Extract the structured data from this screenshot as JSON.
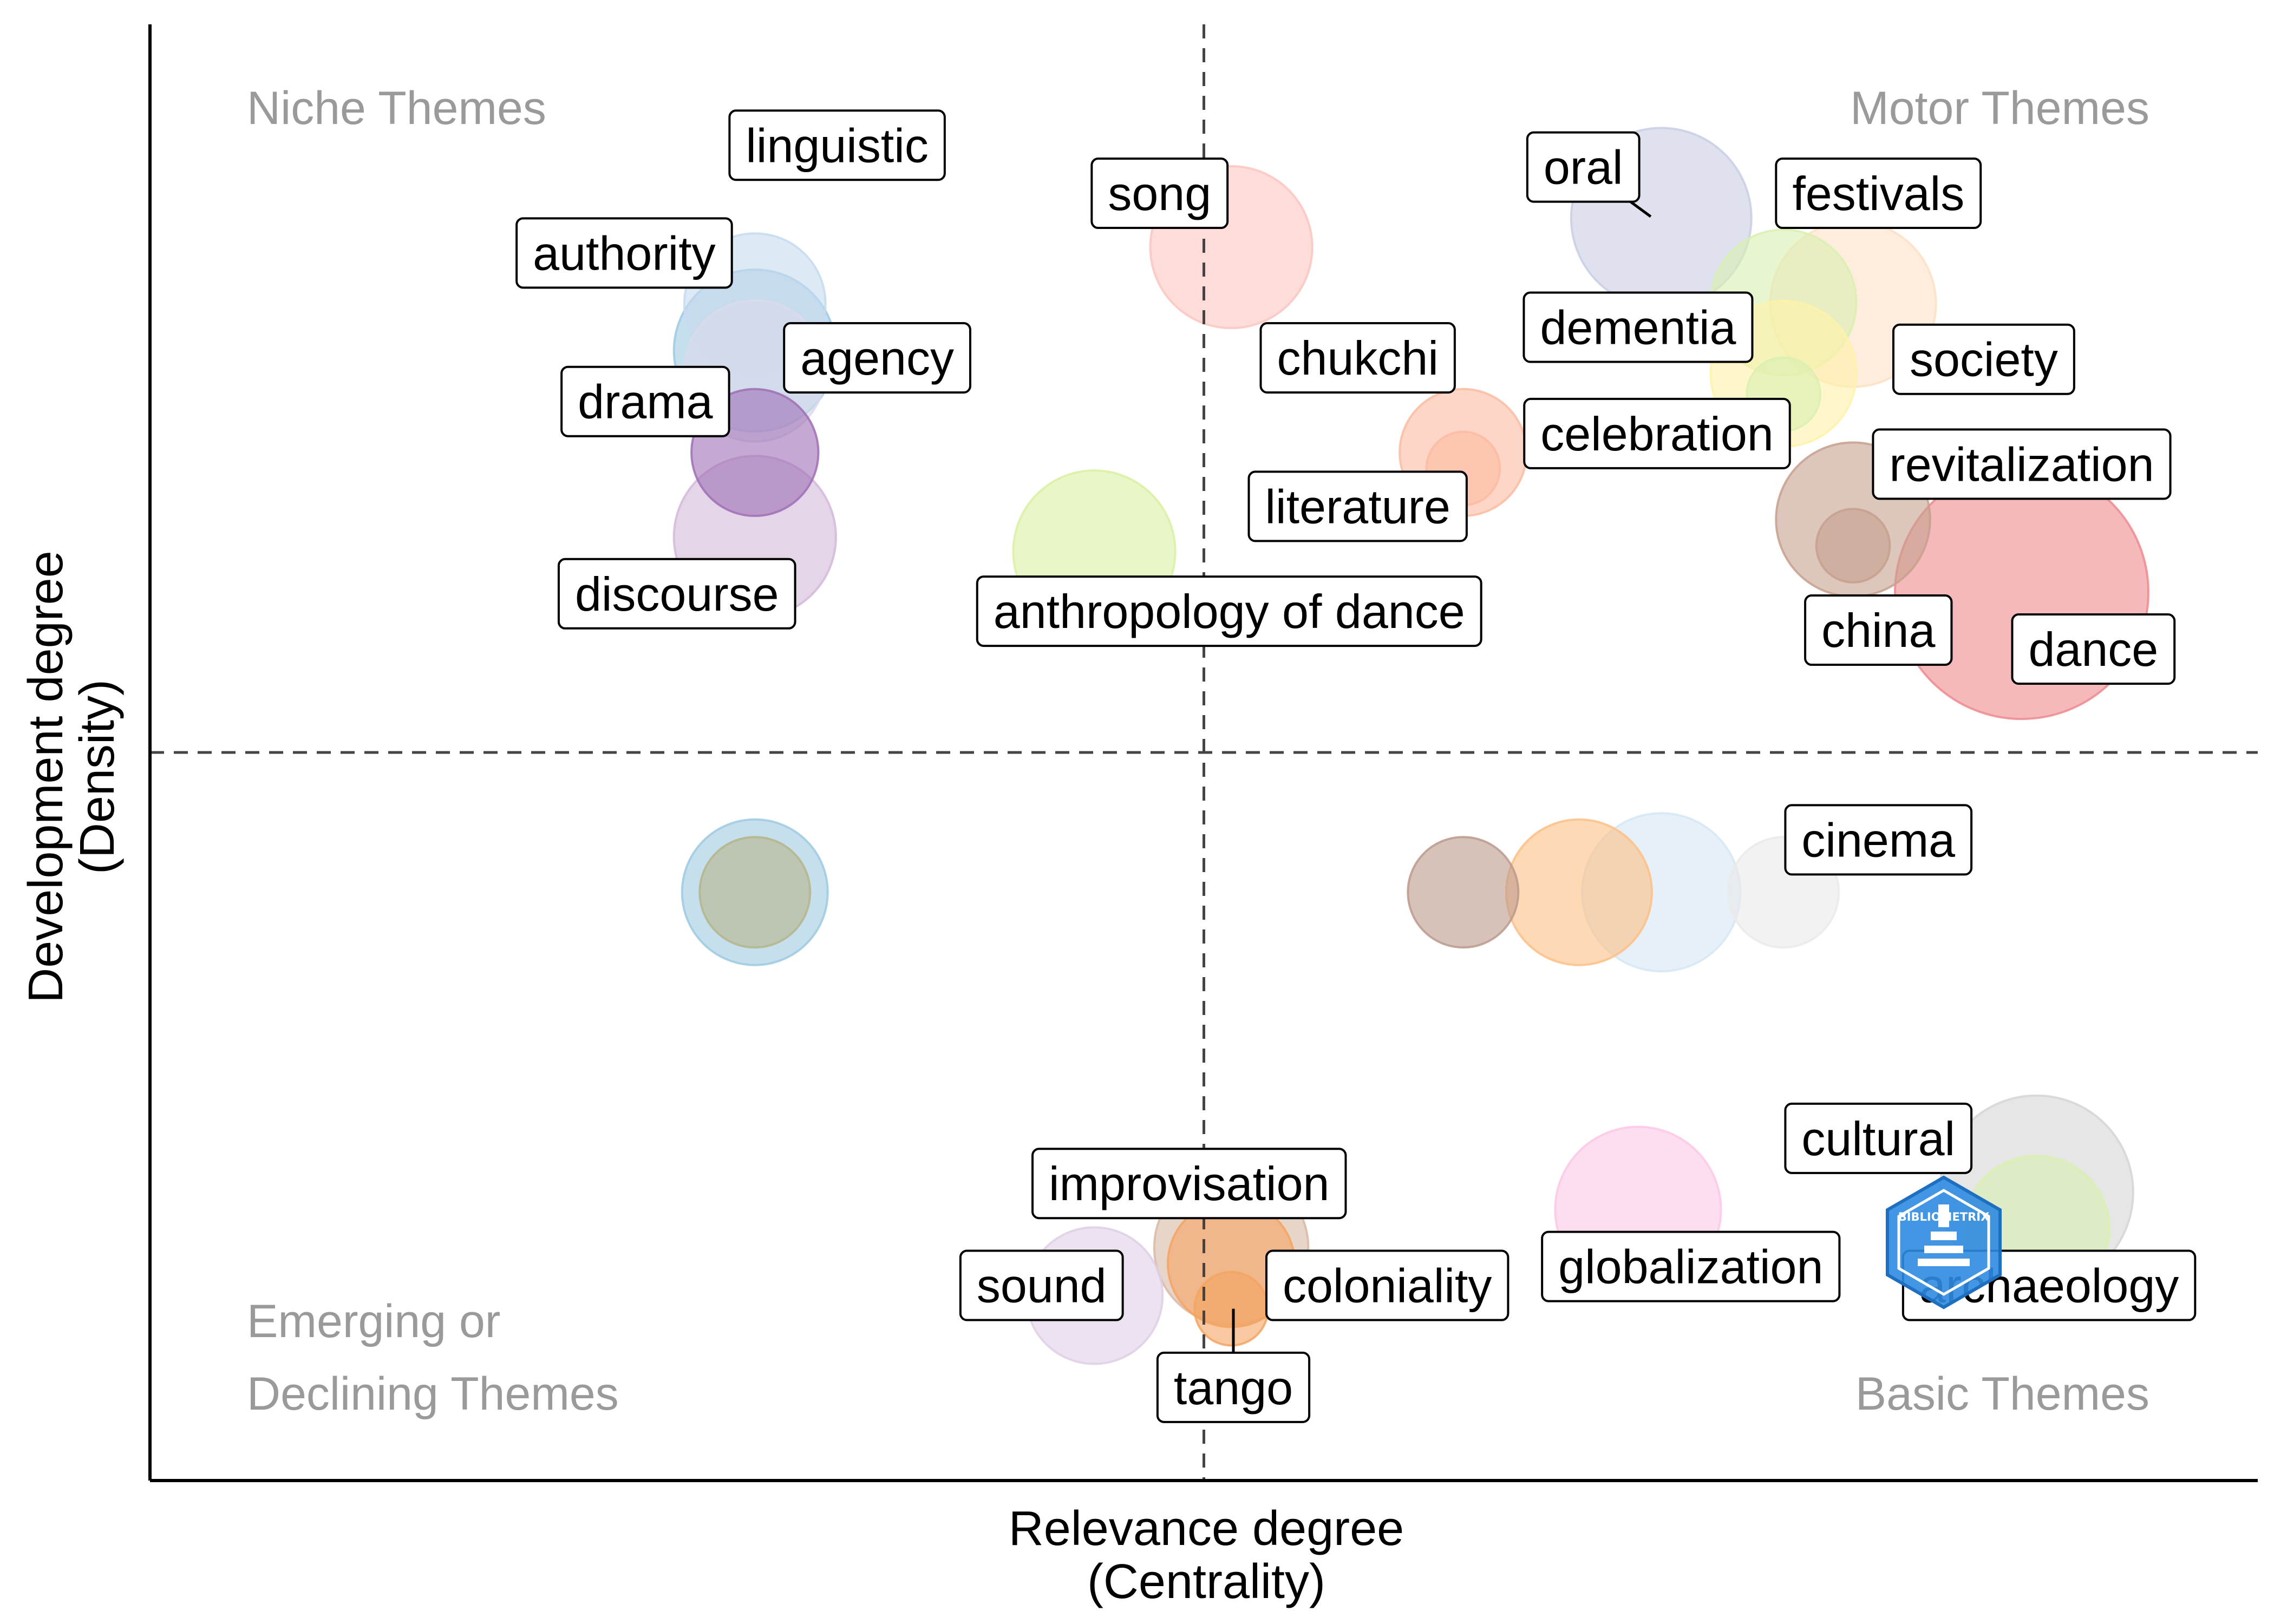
{
  "chart_data": {
    "type": "scatter",
    "title": "",
    "xlabel": "Relevance degree",
    "xlabel_sub": "(Centrality)",
    "ylabel": "Development degree",
    "ylabel_sub": "(Density)",
    "xlim": [
      0,
      10
    ],
    "ylim": [
      0,
      10
    ],
    "x_split": 5,
    "y_split": 5,
    "quadrants": {
      "niche": "Niche Themes",
      "motor": "Motor Themes",
      "emerging_line1": "Emerging or",
      "emerging_line2": "Declining Themes",
      "basic": "Basic Themes"
    },
    "points": [
      {
        "x": 2.87,
        "y": 8.08,
        "size": 28,
        "color": "#c6dbef",
        "label": "linguistic"
      },
      {
        "x": 2.87,
        "y": 7.76,
        "size": 38,
        "color": "#9ecae1",
        "label": "authority"
      },
      {
        "x": 2.87,
        "y": 7.62,
        "size": 28,
        "color": "#dadaeb",
        "label": "agency"
      },
      {
        "x": 2.87,
        "y": 7.06,
        "size": 22,
        "color": "#9e70b5",
        "label": "drama"
      },
      {
        "x": 2.87,
        "y": 6.48,
        "size": 38,
        "color": "#d4b9da",
        "label": "discourse"
      },
      {
        "x": 5.13,
        "y": 8.47,
        "size": 38,
        "color": "#fcc5c0",
        "label": "song"
      },
      {
        "x": 6.23,
        "y": 7.06,
        "size": 22,
        "color": "#fcbba1",
        "label": "chukchi"
      },
      {
        "x": 4.48,
        "y": 6.38,
        "size": 38,
        "color": "#d9f0a3",
        "label": "anthropology of dance"
      },
      {
        "x": 6.23,
        "y": 6.95,
        "size": 6,
        "color": "#fcbba1",
        "label": "literature"
      },
      {
        "x": 7.17,
        "y": 8.67,
        "size": 48,
        "color": "#c9cee3",
        "label": "oral"
      },
      {
        "x": 7.75,
        "y": 8.09,
        "size": 30,
        "color": "#d9f0b0",
        "label": "dementia"
      },
      {
        "x": 8.08,
        "y": 8.08,
        "size": 40,
        "color": "#fde0c5",
        "label": "festivals"
      },
      {
        "x": 7.75,
        "y": 7.6,
        "size": 30,
        "color": "#fff2a8",
        "label": "society"
      },
      {
        "x": 7.75,
        "y": 7.46,
        "size": 6,
        "color": "#d9f0b0",
        "label": "celebration"
      },
      {
        "x": 8.08,
        "y": 6.6,
        "size": 34,
        "color": "#c7a08d",
        "label": "revitalization"
      },
      {
        "x": 8.08,
        "y": 6.42,
        "size": 6,
        "color": "#c7a08d",
        "label": "china"
      },
      {
        "x": 8.88,
        "y": 6.1,
        "size": 100,
        "color": "#ef8a8e",
        "label": "dance"
      },
      {
        "x": 6.23,
        "y": 4.04,
        "size": 16,
        "color": "#bc9a8c",
        "label": ""
      },
      {
        "x": 6.78,
        "y": 4.04,
        "size": 30,
        "color": "#fdbf86",
        "label": ""
      },
      {
        "x": 7.17,
        "y": 4.04,
        "size": 36,
        "color": "#d6e6f4",
        "label": ""
      },
      {
        "x": 7.75,
        "y": 4.04,
        "size": 16,
        "color": "#eaeaea",
        "label": "cinema"
      },
      {
        "x": 2.87,
        "y": 4.04,
        "size": 30,
        "color": "#9ecae1",
        "label": ""
      },
      {
        "x": 2.87,
        "y": 4.04,
        "size": 16,
        "color": "#b5b58a",
        "label": ""
      },
      {
        "x": 8.95,
        "y": 1.98,
        "size": 56,
        "color": "#d5d5d5",
        "label": "cultural"
      },
      {
        "x": 8.95,
        "y": 1.73,
        "size": 30,
        "color": "#d9f0b0",
        "label": "archaeology"
      },
      {
        "x": 7.06,
        "y": 1.86,
        "size": 40,
        "color": "#fbc8e6",
        "label": "globalization"
      },
      {
        "x": 5.13,
        "y": 1.6,
        "size": 34,
        "color": "#d9b9a6",
        "label": "improvisation"
      },
      {
        "x": 5.13,
        "y": 1.49,
        "size": 22,
        "color": "#f4a460",
        "label": "coloniality"
      },
      {
        "x": 4.48,
        "y": 1.27,
        "size": 26,
        "color": "#dfcfe6",
        "label": "sound"
      },
      {
        "x": 5.13,
        "y": 1.18,
        "size": 6,
        "color": "#f4a460",
        "label": "tango"
      }
    ],
    "labels": [
      {
        "text": "linguistic",
        "x": 3.26,
        "y": 9.17,
        "leader": false
      },
      {
        "text": "authority",
        "x": 2.25,
        "y": 8.43,
        "leader": false
      },
      {
        "text": "agency",
        "x": 3.45,
        "y": 7.71,
        "leader": false
      },
      {
        "text": "drama",
        "x": 2.35,
        "y": 7.41,
        "leader": false
      },
      {
        "text": "discourse",
        "x": 2.5,
        "y": 6.09,
        "leader": false
      },
      {
        "text": "song",
        "x": 4.79,
        "y": 8.84,
        "leader": false
      },
      {
        "text": "chukchi",
        "x": 5.73,
        "y": 7.71,
        "leader": false
      },
      {
        "text": "literature",
        "x": 5.73,
        "y": 6.69,
        "leader": false
      },
      {
        "text": "anthropology of dance",
        "x": 5.12,
        "y": 5.97,
        "leader": false
      },
      {
        "text": "oral",
        "x": 6.8,
        "y": 9.02,
        "leader": true,
        "lx": 7.12,
        "ly": 8.68
      },
      {
        "text": "festivals",
        "x": 8.2,
        "y": 8.84,
        "leader": false
      },
      {
        "text": "dementia",
        "x": 7.06,
        "y": 7.92,
        "leader": false
      },
      {
        "text": "society",
        "x": 8.7,
        "y": 7.7,
        "leader": false
      },
      {
        "text": "celebration",
        "x": 7.15,
        "y": 7.19,
        "leader": false
      },
      {
        "text": "revitalization",
        "x": 8.88,
        "y": 6.98,
        "leader": false
      },
      {
        "text": "china",
        "x": 8.2,
        "y": 5.84,
        "leader": false
      },
      {
        "text": "dance",
        "x": 9.22,
        "y": 5.71,
        "leader": false
      },
      {
        "text": "cinema",
        "x": 8.2,
        "y": 4.4,
        "leader": false
      },
      {
        "text": "cultural",
        "x": 8.2,
        "y": 2.35,
        "leader": false
      },
      {
        "text": "improvisation",
        "x": 4.93,
        "y": 2.04,
        "leader": false
      },
      {
        "text": "globalization",
        "x": 7.31,
        "y": 1.47,
        "leader": false
      },
      {
        "text": "archaeology",
        "x": 9.01,
        "y": 1.34,
        "leader": false
      },
      {
        "text": "sound",
        "x": 4.23,
        "y": 1.34,
        "leader": false
      },
      {
        "text": "coloniality",
        "x": 5.87,
        "y": 1.34,
        "leader": false
      },
      {
        "text": "tango",
        "x": 5.14,
        "y": 0.64,
        "leader": true,
        "lx": 5.14,
        "ly": 1.18
      }
    ]
  },
  "watermark": {
    "text": "BIBLIOMETRIX",
    "icon": "bibliometrix-logo-icon",
    "color": "#2f8be0"
  }
}
